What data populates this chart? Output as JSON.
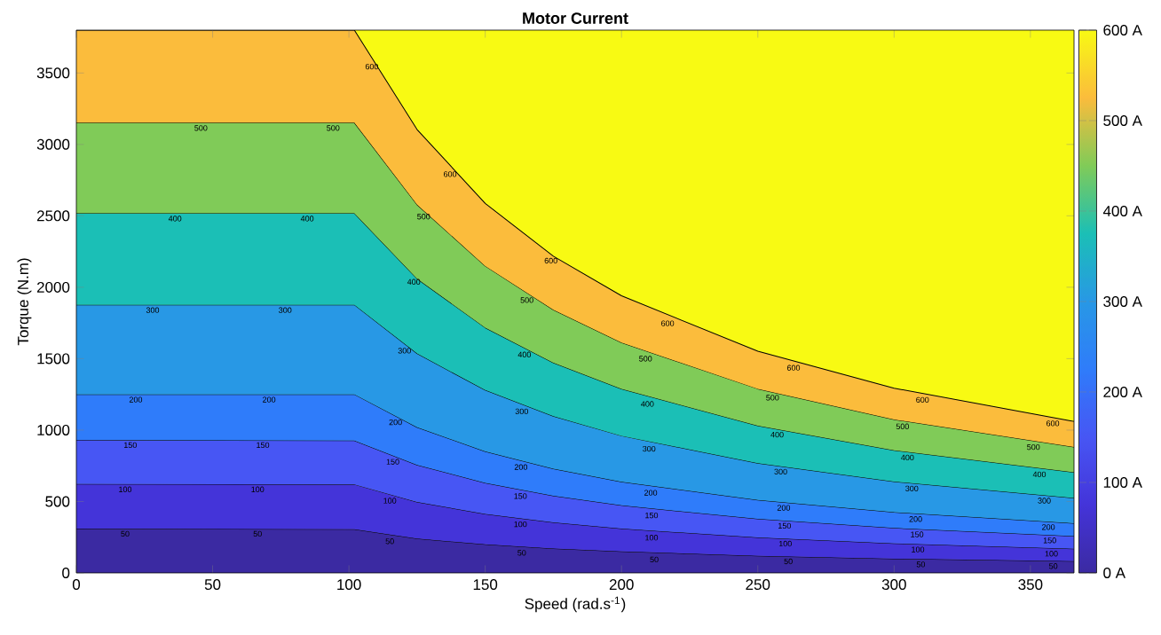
{
  "chart_data": {
    "type": "area",
    "stacked": true,
    "title": "Motor Current",
    "xlabel": "Speed (rad.s$^{-1}$)",
    "ylabel": "Torque (N.m)",
    "xlim": [
      0,
      366
    ],
    "ylim": [
      0,
      3800
    ],
    "xticks": [
      0,
      50,
      100,
      150,
      200,
      250,
      300,
      350
    ],
    "yticks": [
      0,
      500,
      1000,
      1500,
      2000,
      2500,
      3000,
      3500
    ],
    "clim": [
      0,
      600
    ],
    "cticks": [
      {
        "value": 0,
        "label": "0 A"
      },
      {
        "value": 100,
        "label": "100 A"
      },
      {
        "value": 200,
        "label": "200 A"
      },
      {
        "value": 300,
        "label": "300 A"
      },
      {
        "value": 400,
        "label": "400 A"
      },
      {
        "value": 500,
        "label": "500 A"
      },
      {
        "value": 600,
        "label": "600 A"
      }
    ],
    "bands": [
      {
        "axis": "y",
        "from": 0,
        "to": 3800,
        "color": "#f8fa13"
      }
    ],
    "x": [
      0,
      102,
      125,
      150,
      175,
      200,
      250,
      300,
      366
    ],
    "series": [
      {
        "color": "#3b2aa2",
        "values": [
          311,
          305,
          240,
          200,
          171,
          150,
          120,
          100,
          82
        ]
      },
      {
        "color": "#4434d9",
        "values": [
          311,
          315,
          256,
          213,
          183,
          160,
          128,
          107,
          87
        ]
      },
      {
        "color": "#4756f4",
        "values": [
          310,
          306,
          260,
          217,
          186,
          163,
          130,
          108,
          89
        ]
      },
      {
        "color": "#2f7cfa",
        "values": [
          318,
          324,
          264,
          220,
          189,
          165,
          132,
          110,
          90
        ]
      },
      {
        "color": "#2898e5",
        "values": [
          627,
          627,
          516,
          430,
          368,
          322,
          258,
          215,
          177
        ]
      },
      {
        "color": "#1bbfb6",
        "values": [
          641,
          641,
          524,
          437,
          374,
          328,
          262,
          218,
          179
        ]
      },
      {
        "color": "#80cb58",
        "values": [
          634,
          634,
          518,
          432,
          371,
          324,
          259,
          216,
          177
        ]
      },
      {
        "color": "#fbbc3c",
        "values": [
          648,
          648,
          526,
          438,
          375,
          328,
          263,
          219,
          179
        ]
      }
    ],
    "annotations": [
      {
        "text": "600",
        "x": 108.4,
        "y": 3582
      },
      {
        "text": "600",
        "x": 137.1,
        "y": 2829
      },
      {
        "text": "600",
        "x": 174.1,
        "y": 2223
      },
      {
        "text": "600",
        "x": 216.9,
        "y": 1784
      },
      {
        "text": "600",
        "x": 263.1,
        "y": 1473
      },
      {
        "text": "600",
        "x": 310.4,
        "y": 1249
      },
      {
        "text": "600",
        "x": 358.2,
        "y": 1084
      },
      {
        "text": "500",
        "x": 45.7,
        "y": 3152
      },
      {
        "text": "500",
        "x": 94.2,
        "y": 3152
      },
      {
        "text": "500",
        "x": 127.4,
        "y": 2532
      },
      {
        "text": "500",
        "x": 165.3,
        "y": 1947
      },
      {
        "text": "500",
        "x": 208.8,
        "y": 1537
      },
      {
        "text": "500",
        "x": 255.4,
        "y": 1264
      },
      {
        "text": "500",
        "x": 303.1,
        "y": 1063
      },
      {
        "text": "500",
        "x": 351.1,
        "y": 918
      },
      {
        "text": "400",
        "x": 36.2,
        "y": 2518
      },
      {
        "text": "400",
        "x": 84.7,
        "y": 2518
      },
      {
        "text": "400",
        "x": 123.8,
        "y": 2075
      },
      {
        "text": "400",
        "x": 164.4,
        "y": 1566
      },
      {
        "text": "400",
        "x": 209.5,
        "y": 1220
      },
      {
        "text": "400",
        "x": 257.1,
        "y": 1005
      },
      {
        "text": "400",
        "x": 304.9,
        "y": 845
      },
      {
        "text": "400",
        "x": 353.3,
        "y": 727
      },
      {
        "text": "300",
        "x": 28,
        "y": 1877
      },
      {
        "text": "300",
        "x": 76.6,
        "y": 1877
      },
      {
        "text": "300",
        "x": 120.4,
        "y": 1593
      },
      {
        "text": "300",
        "x": 163.4,
        "y": 1168
      },
      {
        "text": "300",
        "x": 210.1,
        "y": 906
      },
      {
        "text": "300",
        "x": 258.4,
        "y": 746
      },
      {
        "text": "300",
        "x": 306.5,
        "y": 628
      },
      {
        "text": "300",
        "x": 355.1,
        "y": 543
      },
      {
        "text": "200",
        "x": 21.8,
        "y": 1250
      },
      {
        "text": "200",
        "x": 70.7,
        "y": 1250
      },
      {
        "text": "200",
        "x": 117.1,
        "y": 1092
      },
      {
        "text": "200",
        "x": 163.1,
        "y": 778
      },
      {
        "text": "200",
        "x": 210.7,
        "y": 598
      },
      {
        "text": "200",
        "x": 259.5,
        "y": 493
      },
      {
        "text": "200",
        "x": 307.9,
        "y": 414
      },
      {
        "text": "200",
        "x": 356.6,
        "y": 358
      },
      {
        "text": "150",
        "x": 19.8,
        "y": 932
      },
      {
        "text": "150",
        "x": 68.4,
        "y": 932
      },
      {
        "text": "150",
        "x": 116.1,
        "y": 815
      },
      {
        "text": "150",
        "x": 162.9,
        "y": 575
      },
      {
        "text": "150",
        "x": 211,
        "y": 440
      },
      {
        "text": "150",
        "x": 259.8,
        "y": 367
      },
      {
        "text": "150",
        "x": 308.4,
        "y": 307
      },
      {
        "text": "150",
        "x": 357.1,
        "y": 265
      },
      {
        "text": "100",
        "x": 17.9,
        "y": 622
      },
      {
        "text": "100",
        "x": 66.5,
        "y": 622
      },
      {
        "text": "100",
        "x": 115,
        "y": 543
      },
      {
        "text": "100",
        "x": 162.9,
        "y": 378
      },
      {
        "text": "100",
        "x": 211,
        "y": 284
      },
      {
        "text": "100",
        "x": 260.1,
        "y": 242
      },
      {
        "text": "100",
        "x": 308.7,
        "y": 201
      },
      {
        "text": "100",
        "x": 357.7,
        "y": 172
      },
      {
        "text": "50",
        "x": 17.9,
        "y": 311
      },
      {
        "text": "50",
        "x": 66.5,
        "y": 311
      },
      {
        "text": "50",
        "x": 115,
        "y": 259
      },
      {
        "text": "50",
        "x": 163.4,
        "y": 178
      },
      {
        "text": "50",
        "x": 212,
        "y": 131
      },
      {
        "text": "50",
        "x": 261.2,
        "y": 118
      },
      {
        "text": "50",
        "x": 309.8,
        "y": 97
      },
      {
        "text": "50",
        "x": 358.4,
        "y": 85
      }
    ]
  }
}
